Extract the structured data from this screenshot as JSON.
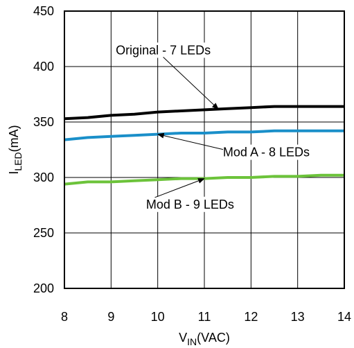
{
  "chart_data": {
    "type": "line",
    "xlabel": {
      "main": "V",
      "sub": "IN",
      "unit": "(VAC)"
    },
    "ylabel": {
      "main": "I",
      "sub": "LED",
      "unit": "(mA)"
    },
    "xlim": [
      8,
      14
    ],
    "ylim": [
      200,
      450
    ],
    "xticks": [
      8,
      9,
      10,
      11,
      12,
      13,
      14
    ],
    "yticks": [
      200,
      250,
      300,
      350,
      400,
      450
    ],
    "grid": true,
    "series": [
      {
        "name": "Original - 7 LEDs",
        "color": "#000000",
        "x": [
          8,
          8.5,
          9,
          9.5,
          10,
          10.5,
          11,
          11.5,
          12,
          12.5,
          13,
          13.5,
          14
        ],
        "y": [
          353,
          354,
          356,
          357,
          359,
          360,
          361,
          362,
          363,
          364,
          364,
          364,
          364
        ]
      },
      {
        "name": "Mod A - 8 LEDs",
        "color": "#1a8fc9",
        "x": [
          8,
          8.5,
          9,
          9.5,
          10,
          10.5,
          11,
          11.5,
          12,
          12.5,
          13,
          13.5,
          14
        ],
        "y": [
          334,
          336,
          337,
          338,
          339,
          340,
          340,
          341,
          341,
          342,
          342,
          342,
          342
        ]
      },
      {
        "name": "Mod B - 9 LEDs",
        "color": "#6cc33a",
        "x": [
          8,
          8.5,
          9,
          9.5,
          10,
          10.5,
          11,
          11.5,
          12,
          12.5,
          13,
          13.5,
          14
        ],
        "y": [
          294,
          296,
          296,
          297,
          298,
          299,
          299,
          300,
          300,
          301,
          301,
          302,
          302
        ]
      }
    ],
    "annotations": [
      {
        "text": "Original - 7 LEDs",
        "series": 0,
        "point_x": 11.3,
        "label_x": 9.1,
        "label_y": 411
      },
      {
        "text": "Mod A - 8 LEDs",
        "series": 1,
        "point_x": 10.0,
        "label_x": 11.4,
        "label_y": 319
      },
      {
        "text": "Mod B - 9 LEDs",
        "series": 2,
        "point_x": 11.0,
        "label_x": 9.75,
        "label_y": 272
      }
    ]
  }
}
